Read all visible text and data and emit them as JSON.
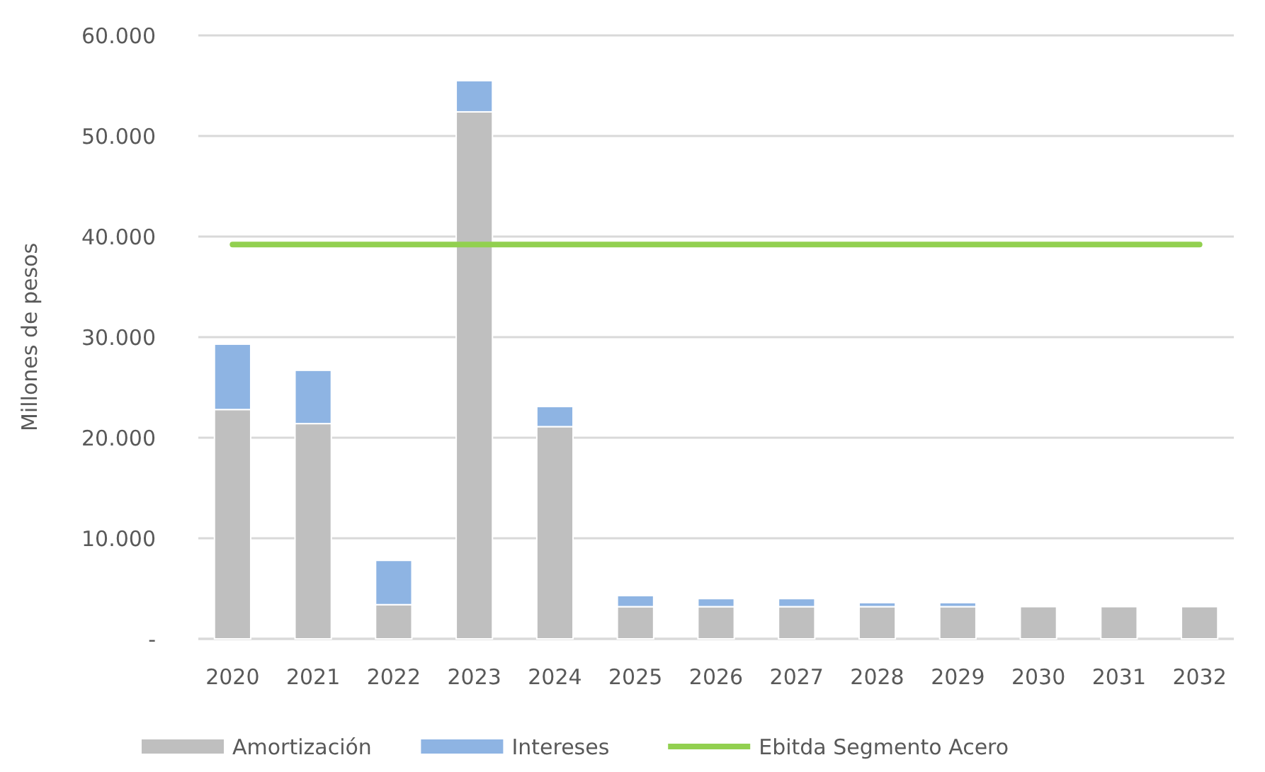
{
  "chart_data": {
    "type": "bar",
    "stacked": true,
    "ylabel": "Millones de pesos",
    "categories": [
      "2020",
      "2021",
      "2022",
      "2023",
      "2024",
      "2025",
      "2026",
      "2027",
      "2028",
      "2029",
      "2030",
      "2031",
      "2032"
    ],
    "series": [
      {
        "name": "Amortización",
        "color": "#bfbfbf",
        "values": [
          22800,
          21400,
          3400,
          52400,
          21100,
          3200,
          3200,
          3200,
          3200,
          3200,
          3200,
          3200,
          3200
        ]
      },
      {
        "name": "Intereses",
        "color": "#8eb4e3",
        "values": [
          6500,
          5300,
          4400,
          3100,
          2000,
          1100,
          800,
          800,
          400,
          400,
          0,
          0,
          0
        ]
      },
      {
        "name": "Ebitda Segmento Acero",
        "type": "line",
        "color": "#92d050",
        "values": [
          39200,
          39200,
          39200,
          39200,
          39200,
          39200,
          39200,
          39200,
          39200,
          39200,
          39200,
          39200,
          39200
        ]
      }
    ],
    "ylim": [
      0,
      60000
    ],
    "yticks": [
      {
        "value": 0,
        "label": "-"
      },
      {
        "value": 10000,
        "label": "10.000"
      },
      {
        "value": 20000,
        "label": "20.000"
      },
      {
        "value": 30000,
        "label": "30.000"
      },
      {
        "value": 40000,
        "label": "40.000"
      },
      {
        "value": 50000,
        "label": "50.000"
      },
      {
        "value": 60000,
        "label": "60.000"
      }
    ],
    "grid": "y",
    "legend": "bottom",
    "marker": "none"
  }
}
